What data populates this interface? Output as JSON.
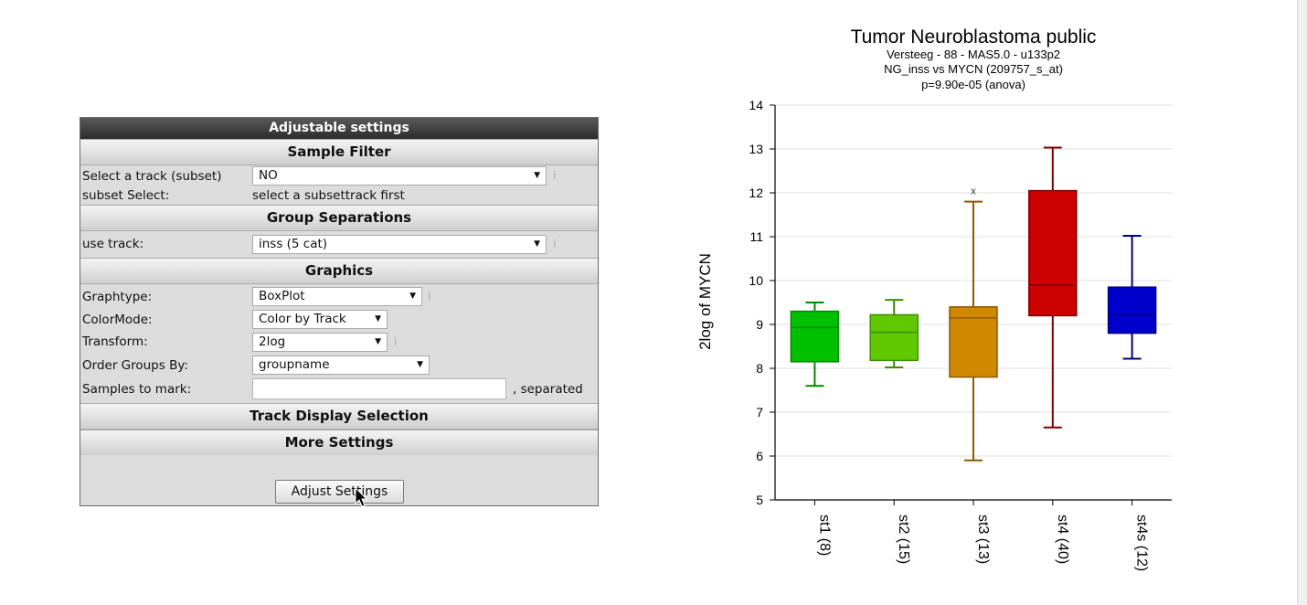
{
  "panel": {
    "title": "Adjustable settings",
    "sections": {
      "sample_filter": "Sample Filter",
      "group_separations": "Group Separations",
      "graphics": "Graphics",
      "track_display": "Track Display Selection",
      "more_settings": "More Settings"
    },
    "select_track_label": "Select a track (subset)",
    "select_track_value": "NO",
    "subset_select_label": "subset Select:",
    "subset_select_value": "select a subsettrack first",
    "use_track_label": "use track:",
    "use_track_value": "inss (5 cat)",
    "graphtype_label": "Graphtype:",
    "graphtype_value": "BoxPlot",
    "colormode_label": "ColorMode:",
    "colormode_value": "Color by Track",
    "transform_label": "Transform:",
    "transform_value": "2log",
    "order_label": "Order Groups By:",
    "order_value": "groupname",
    "samples_label": "Samples to mark:",
    "samples_value": "",
    "samples_suffix": ", separated",
    "info_mark": "i",
    "adjust_button": "Adjust Settings",
    "dropdown_arrow": "▼"
  },
  "chart_data": {
    "type": "box",
    "title": "Tumor Neuroblastoma public",
    "subtitle_lines": [
      "Versteeg - 88 - MAS5.0 - u133p2",
      "NG_inss vs MYCN (209757_s_at)",
      "p=9.90e-05  (anova)"
    ],
    "ylabel": "2log of MYCN",
    "ylim": [
      5,
      14
    ],
    "yticks": [
      5,
      6,
      7,
      8,
      9,
      10,
      11,
      12,
      13,
      14
    ],
    "grid": true,
    "outlier_marker": "x",
    "series": [
      {
        "label": "st1 (8)",
        "color": "#00c000",
        "stroke": "#008800",
        "min": 7.6,
        "q1": 8.15,
        "median": 8.93,
        "q3": 9.3,
        "max": 9.5,
        "outliers": []
      },
      {
        "label": "st2 (15)",
        "color": "#60c800",
        "stroke": "#3c8c00",
        "min": 8.02,
        "q1": 8.18,
        "median": 8.82,
        "q3": 9.22,
        "max": 9.56,
        "outliers": []
      },
      {
        "label": "st3 (13)",
        "color": "#d08800",
        "stroke": "#8c5a00",
        "min": 5.9,
        "q1": 7.8,
        "median": 9.15,
        "q3": 9.4,
        "max": 11.8,
        "outliers": [
          12.05
        ]
      },
      {
        "label": "st4 (40)",
        "color": "#cc0000",
        "stroke": "#800000",
        "min": 6.65,
        "q1": 9.2,
        "median": 9.9,
        "q3": 12.05,
        "max": 13.03,
        "outliers": []
      },
      {
        "label": "st4s (12)",
        "color": "#0000cc",
        "stroke": "#000080",
        "min": 8.22,
        "q1": 8.8,
        "median": 9.22,
        "q3": 9.85,
        "max": 11.02,
        "outliers": []
      }
    ]
  }
}
